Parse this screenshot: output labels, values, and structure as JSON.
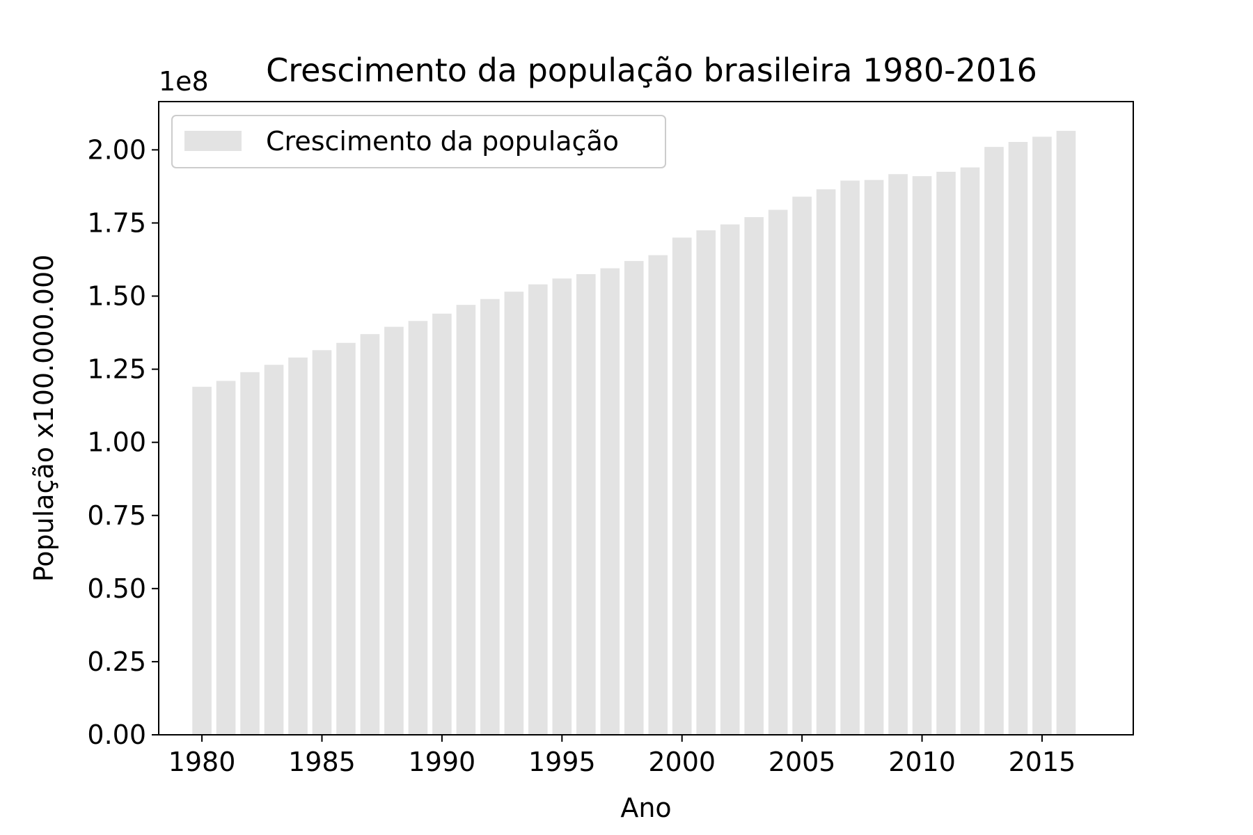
{
  "chart_data": {
    "type": "bar",
    "title": "Crescimento da população brasileira 1980-2016",
    "xlabel": "Ano",
    "ylabel": "População x100.000.000",
    "y_offset_label": "1e8",
    "x_ticks": [
      1980,
      1985,
      1990,
      1995,
      2000,
      2005,
      2010,
      2015
    ],
    "x_tick_labels": [
      "1980",
      "1985",
      "1990",
      "1995",
      "2000",
      "2005",
      "2010",
      "2015"
    ],
    "y_ticks": [
      0,
      0.25,
      0.5,
      0.75,
      1.0,
      1.25,
      1.5,
      1.75,
      2.0
    ],
    "y_tick_labels": [
      "0.00",
      "0.25",
      "0.50",
      "0.75",
      "1.00",
      "1.25",
      "1.50",
      "1.75",
      "2.00"
    ],
    "xlim": [
      1978.2,
      2018.8
    ],
    "ylim": [
      0,
      2.165
    ],
    "legend": {
      "location": "top-left",
      "entries": [
        "Crescimento da população"
      ]
    },
    "grid": false,
    "bar_color": "#e3e3e3",
    "series": [
      {
        "name": "Crescimento da população",
        "x": [
          1980,
          1981,
          1982,
          1983,
          1984,
          1985,
          1986,
          1987,
          1988,
          1989,
          1990,
          1991,
          1992,
          1993,
          1994,
          1995,
          1996,
          1997,
          1998,
          1999,
          2000,
          2001,
          2002,
          2003,
          2004,
          2005,
          2006,
          2007,
          2008,
          2009,
          2010,
          2011,
          2012,
          2013,
          2014,
          2015,
          2016
        ],
        "values": [
          1.19,
          1.21,
          1.24,
          1.265,
          1.29,
          1.315,
          1.34,
          1.37,
          1.395,
          1.415,
          1.44,
          1.47,
          1.49,
          1.515,
          1.54,
          1.56,
          1.575,
          1.595,
          1.62,
          1.64,
          1.7,
          1.725,
          1.745,
          1.77,
          1.795,
          1.84,
          1.865,
          1.895,
          1.897,
          1.917,
          1.91,
          1.925,
          1.94,
          2.01,
          2.027,
          2.045,
          2.065
        ]
      }
    ]
  }
}
